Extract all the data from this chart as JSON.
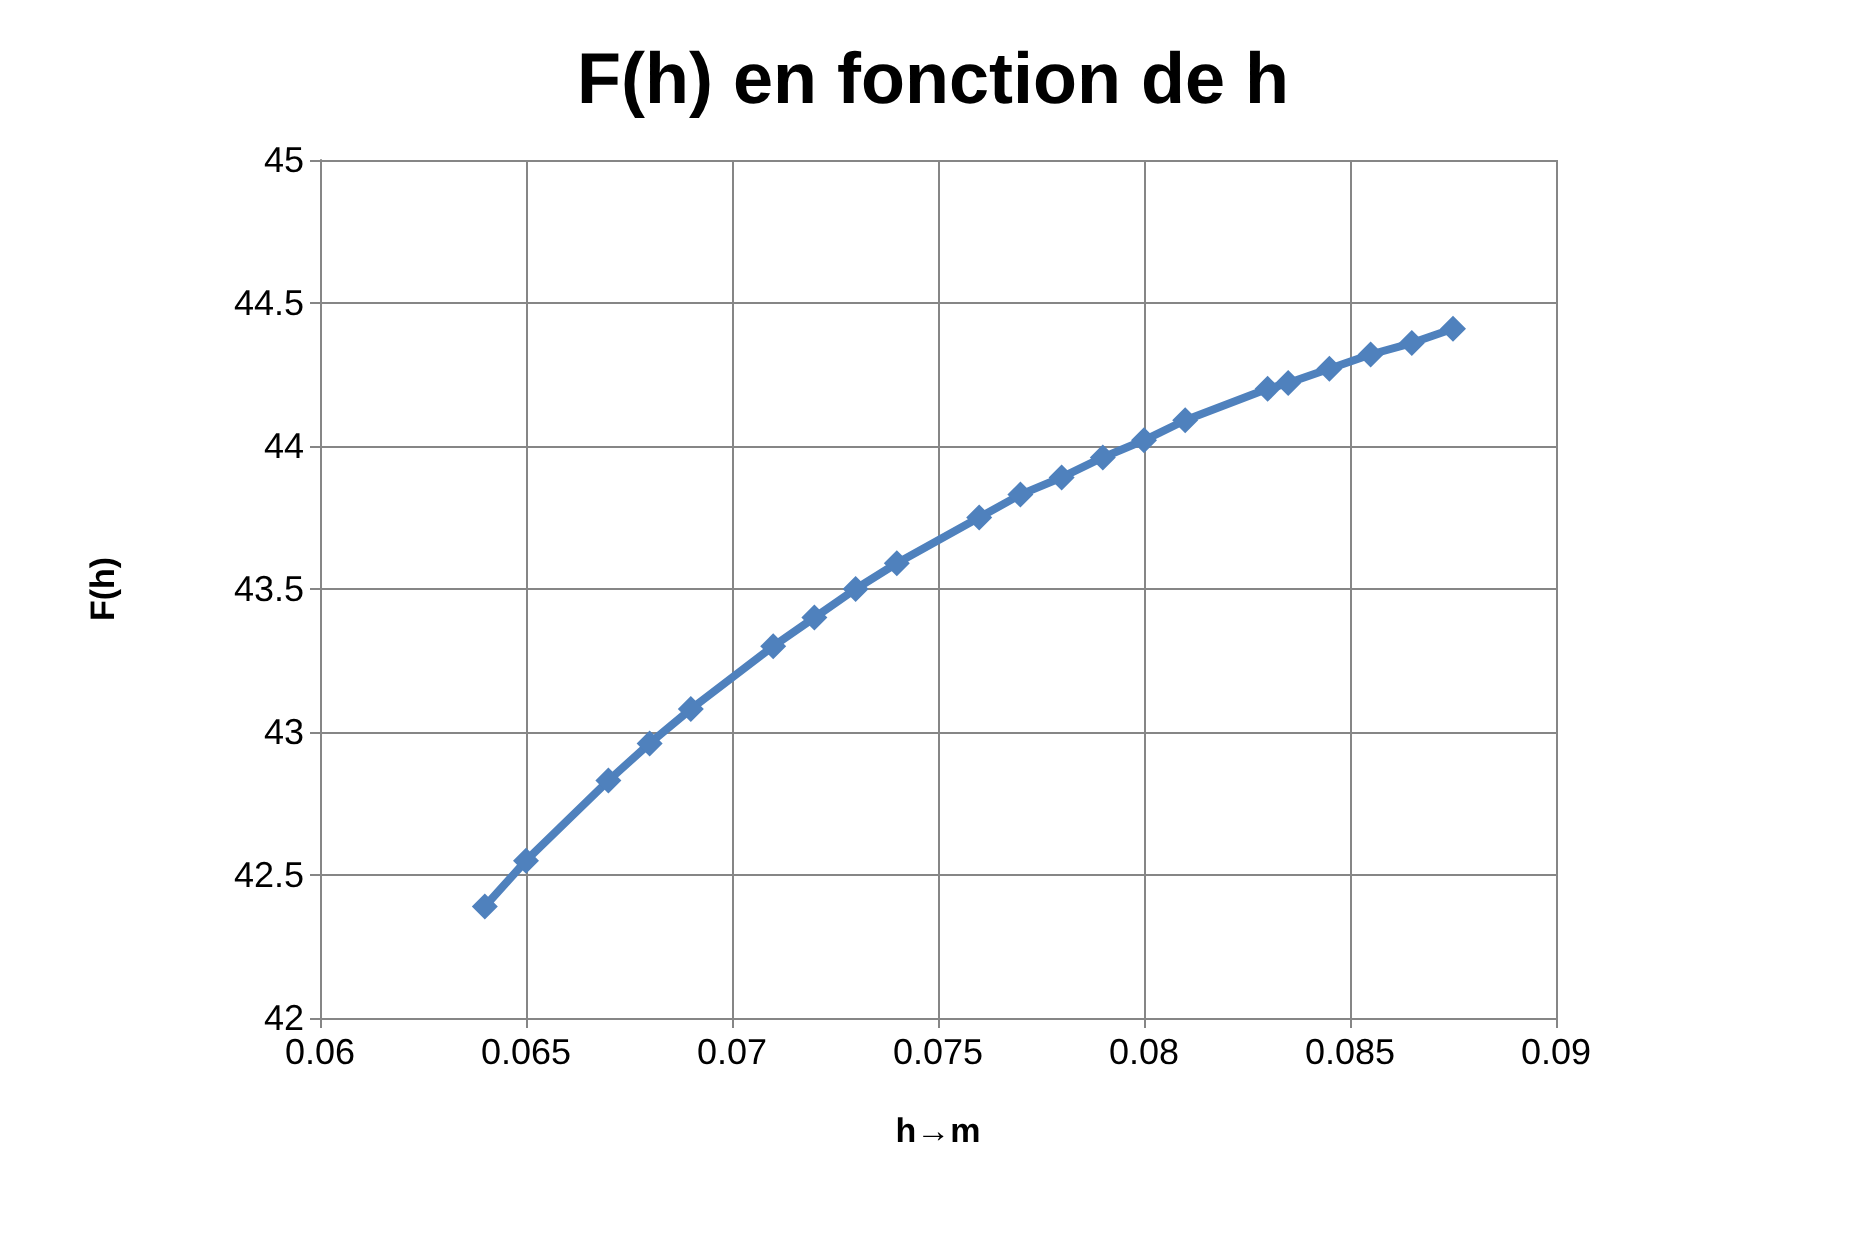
{
  "chart_data": {
    "type": "line",
    "title": "F(h) en fonction de h",
    "xlabel": "h→m",
    "ylabel": "F(h)",
    "x": [
      0.064,
      0.065,
      0.067,
      0.068,
      0.069,
      0.071,
      0.072,
      0.073,
      0.074,
      0.076,
      0.077,
      0.078,
      0.079,
      0.08,
      0.081,
      0.083,
      0.0835,
      0.0845,
      0.0855,
      0.0865,
      0.0875
    ],
    "series": [
      {
        "color": "#4f81bd",
        "values": [
          42.39,
          42.55,
          42.83,
          42.96,
          43.08,
          43.3,
          43.4,
          43.5,
          43.59,
          43.75,
          43.83,
          43.89,
          43.96,
          44.02,
          44.09,
          44.2,
          44.22,
          44.27,
          44.32,
          44.36,
          44.41
        ]
      }
    ],
    "xlim": [
      0.06,
      0.09
    ],
    "xticks": [
      0.06,
      0.065,
      0.07,
      0.075,
      0.08,
      0.085,
      0.09
    ],
    "ylim": [
      42,
      45
    ],
    "yticks": [
      42,
      42.5,
      43,
      43.5,
      44,
      44.5,
      45
    ],
    "grid": true,
    "marker": "diamond",
    "line_style": "solid"
  }
}
